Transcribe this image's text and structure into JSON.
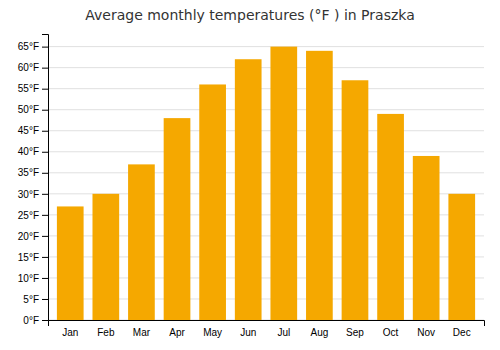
{
  "chart_data": {
    "type": "bar",
    "title": "Average monthly temperatures (°F ) in Praszka",
    "categories": [
      "Jan",
      "Feb",
      "Mar",
      "Apr",
      "May",
      "Jun",
      "Jul",
      "Aug",
      "Sep",
      "Oct",
      "Nov",
      "Dec"
    ],
    "values": [
      27,
      30,
      37,
      48,
      56,
      62,
      65,
      64,
      57,
      49,
      39,
      30
    ],
    "color": "#F5A800",
    "ylim": [
      0,
      68
    ],
    "yticks": [
      {
        "value": 0,
        "label": "0°F"
      },
      {
        "value": 5,
        "label": "5°F"
      },
      {
        "value": 10,
        "label": "10°F"
      },
      {
        "value": 15,
        "label": "15°F"
      },
      {
        "value": 20,
        "label": "20°F"
      },
      {
        "value": 25,
        "label": "25°F"
      },
      {
        "value": 30,
        "label": "30°F"
      },
      {
        "value": 35,
        "label": "35°F"
      },
      {
        "value": 40,
        "label": "40°F"
      },
      {
        "value": 45,
        "label": "45°F"
      },
      {
        "value": 50,
        "label": "50°F"
      },
      {
        "value": 55,
        "label": "55°F"
      },
      {
        "value": 60,
        "label": "60°F"
      },
      {
        "value": 65,
        "label": "65°F"
      }
    ],
    "grid": true
  }
}
